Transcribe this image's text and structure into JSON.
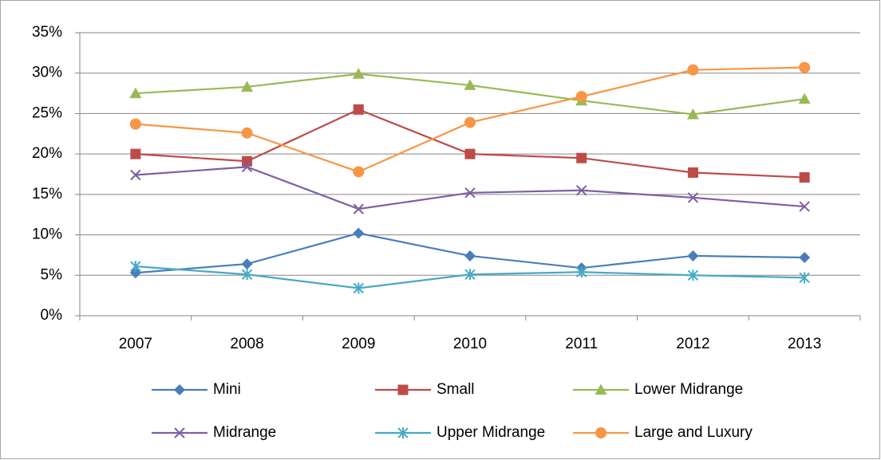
{
  "chart_data": {
    "type": "line",
    "categories": [
      "2007",
      "2008",
      "2009",
      "2010",
      "2011",
      "2012",
      "2013"
    ],
    "series": [
      {
        "name": "Mini",
        "color": "#4a7ebb",
        "marker": "diamond",
        "values": [
          5.3,
          6.4,
          10.2,
          7.4,
          5.9,
          7.4,
          7.2
        ]
      },
      {
        "name": "Small",
        "color": "#be4b48",
        "marker": "square",
        "values": [
          20.0,
          19.1,
          25.5,
          20.0,
          19.5,
          17.7,
          17.1
        ]
      },
      {
        "name": "Lower Midrange",
        "color": "#98b954",
        "marker": "triangle",
        "values": [
          27.5,
          28.3,
          29.9,
          28.5,
          26.6,
          24.9,
          26.8
        ]
      },
      {
        "name": "Midrange",
        "color": "#7d60a0",
        "marker": "x",
        "values": [
          17.4,
          18.4,
          13.2,
          15.2,
          15.5,
          14.6,
          13.5
        ]
      },
      {
        "name": "Upper Midrange",
        "color": "#46aac5",
        "marker": "star",
        "values": [
          6.1,
          5.1,
          3.4,
          5.1,
          5.4,
          5.0,
          4.7
        ]
      },
      {
        "name": "Large and Luxury",
        "color": "#f79646",
        "marker": "circle",
        "values": [
          23.7,
          22.6,
          17.8,
          23.9,
          27.1,
          30.4,
          30.7
        ]
      }
    ],
    "ylim": [
      0,
      35
    ],
    "yticks": [
      {
        "value": 0,
        "label": "0%"
      },
      {
        "value": 5,
        "label": "5%"
      },
      {
        "value": 10,
        "label": "10%"
      },
      {
        "value": 15,
        "label": "15%"
      },
      {
        "value": 20,
        "label": "20%"
      },
      {
        "value": 25,
        "label": "25%"
      },
      {
        "value": 30,
        "label": "30%"
      },
      {
        "value": 35,
        "label": "35%"
      }
    ],
    "grid": true,
    "legend": "bottom"
  }
}
